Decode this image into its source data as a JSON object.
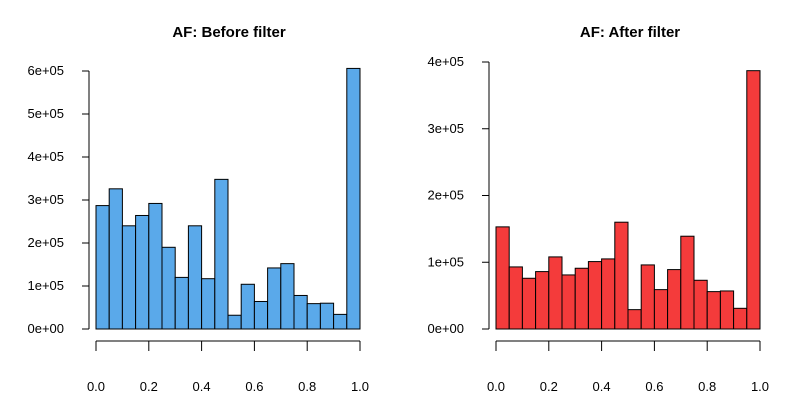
{
  "chart_data": [
    {
      "type": "bar",
      "title": "AF: Before filter",
      "xlabel": "",
      "ylabel": "",
      "color": "#5aa9ea",
      "bin_width": 0.05,
      "x_range": [
        0,
        1
      ],
      "xlim": [
        0,
        1
      ],
      "ylim": [
        0,
        600000
      ],
      "x_ticks": [
        0,
        0.2,
        0.4,
        0.6,
        0.8,
        1.0
      ],
      "x_tick_labels": [
        "0.0",
        "0.2",
        "0.4",
        "0.6",
        "0.8",
        "1.0"
      ],
      "y_ticks": [
        0,
        100000,
        200000,
        300000,
        400000,
        500000,
        600000
      ],
      "y_tick_labels": [
        "0e+00",
        "1e+05",
        "2e+05",
        "3e+05",
        "4e+05",
        "5e+05",
        "6e+05"
      ],
      "grid": false,
      "values": [
        287000,
        326000,
        240000,
        264000,
        292000,
        190000,
        120000,
        240000,
        117000,
        348000,
        32000,
        104000,
        64000,
        142000,
        152000,
        78000,
        59000,
        60000,
        34000,
        606000
      ]
    },
    {
      "type": "bar",
      "title": "AF: After filter",
      "xlabel": "",
      "ylabel": "",
      "color": "#f43b3b",
      "bin_width": 0.05,
      "x_range": [
        0,
        1
      ],
      "xlim": [
        0,
        1
      ],
      "ylim": [
        0,
        400000
      ],
      "x_ticks": [
        0,
        0.2,
        0.4,
        0.6,
        0.8,
        1.0
      ],
      "x_tick_labels": [
        "0.0",
        "0.2",
        "0.4",
        "0.6",
        "0.8",
        "1.0"
      ],
      "y_ticks": [
        0,
        100000,
        200000,
        300000,
        400000
      ],
      "y_tick_labels": [
        "0e+00",
        "1e+05",
        "2e+05",
        "3e+05",
        "4e+05"
      ],
      "grid": false,
      "values": [
        153000,
        93000,
        76000,
        86000,
        108000,
        81000,
        91000,
        101000,
        105000,
        160000,
        29000,
        96000,
        59000,
        89000,
        139000,
        73000,
        56000,
        57000,
        31000,
        387000
      ]
    }
  ]
}
